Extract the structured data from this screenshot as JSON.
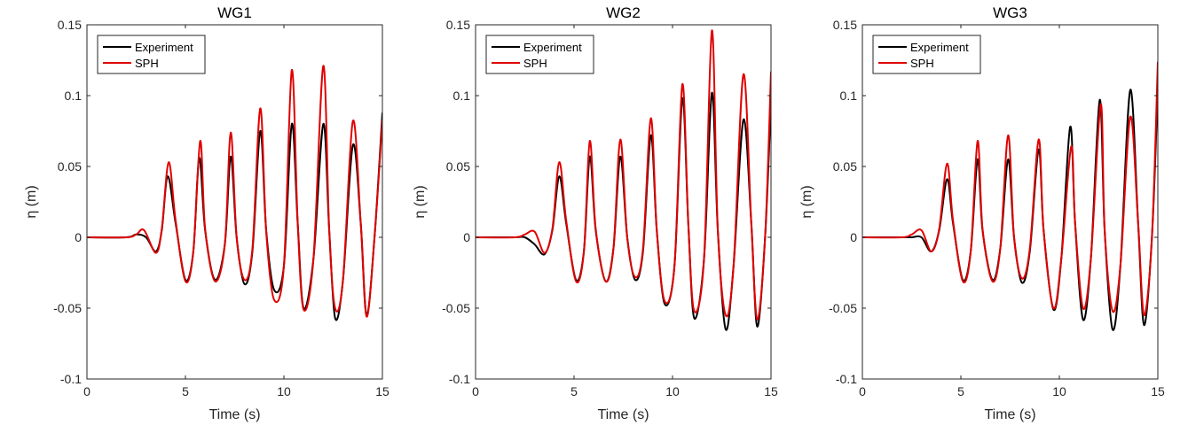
{
  "chart_data": [
    {
      "type": "line",
      "title": "WG1",
      "xlabel": "Time (s)",
      "ylabel": "η (m)",
      "xlim": [
        0,
        15
      ],
      "ylim": [
        -0.1,
        0.15
      ],
      "xticks": [
        "0",
        "5",
        "10",
        "15"
      ],
      "yticks": [
        "-0.1",
        "-0.05",
        "0",
        "0.05",
        "0.1",
        "0.15"
      ],
      "legend": "top-left",
      "grid": false,
      "series": [
        {
          "name": "Experiment",
          "color": "#000000",
          "x": [
            0,
            2.0,
            2.5,
            3.0,
            3.5,
            3.8,
            4.1,
            4.5,
            5.0,
            5.4,
            5.7,
            6.0,
            6.5,
            7.0,
            7.3,
            7.6,
            8.0,
            8.4,
            8.8,
            9.1,
            9.5,
            10.0,
            10.4,
            10.7,
            11.0,
            11.5,
            12.0,
            12.3,
            12.6,
            13.0,
            13.5,
            13.9,
            14.2,
            14.6,
            15.0
          ],
          "values": [
            0,
            0,
            0.002,
            0.0,
            -0.01,
            0.005,
            0.043,
            0.01,
            -0.03,
            -0.01,
            0.056,
            0.005,
            -0.03,
            -0.005,
            0.057,
            0.0,
            -0.033,
            -0.01,
            0.075,
            0.005,
            -0.037,
            -0.02,
            0.08,
            0.01,
            -0.05,
            -0.015,
            0.08,
            0.005,
            -0.057,
            -0.03,
            0.065,
            0.01,
            -0.055,
            0.0,
            0.088
          ]
        },
        {
          "name": "SPH",
          "color": "#e00000",
          "x": [
            0,
            2.0,
            2.5,
            2.9,
            3.5,
            3.8,
            4.15,
            4.5,
            5.0,
            5.4,
            5.75,
            6.0,
            6.5,
            7.0,
            7.3,
            7.6,
            8.0,
            8.4,
            8.8,
            9.1,
            9.5,
            10.0,
            10.4,
            10.7,
            11.0,
            11.5,
            12.0,
            12.3,
            12.6,
            13.0,
            13.5,
            13.9,
            14.2,
            14.6,
            15.0
          ],
          "values": [
            0,
            0,
            0.002,
            0.005,
            -0.011,
            0.006,
            0.053,
            0.012,
            -0.031,
            -0.01,
            0.068,
            0.006,
            -0.031,
            -0.005,
            0.074,
            0.0,
            -0.03,
            -0.008,
            0.091,
            0.004,
            -0.044,
            -0.02,
            0.118,
            0.01,
            -0.051,
            -0.015,
            0.121,
            0.005,
            -0.05,
            -0.03,
            0.082,
            0.01,
            -0.056,
            0.0,
            0.083
          ]
        }
      ]
    },
    {
      "type": "line",
      "title": "WG2",
      "xlabel": "Time (s)",
      "ylabel": "η (m)",
      "xlim": [
        0,
        15
      ],
      "ylim": [
        -0.1,
        0.15
      ],
      "xticks": [
        "0",
        "5",
        "10",
        "15"
      ],
      "yticks": [
        "-0.1",
        "-0.05",
        "0",
        "0.05",
        "0.1",
        "0.15"
      ],
      "legend": "top-left",
      "grid": false,
      "series": [
        {
          "name": "Experiment",
          "color": "#000000",
          "x": [
            0,
            2.0,
            2.5,
            3.0,
            3.5,
            3.9,
            4.25,
            4.6,
            5.1,
            5.5,
            5.8,
            6.1,
            6.6,
            7.0,
            7.35,
            7.7,
            8.1,
            8.5,
            8.9,
            9.2,
            9.6,
            10.1,
            10.5,
            10.8,
            11.1,
            11.6,
            12.0,
            12.3,
            12.7,
            13.1,
            13.6,
            14.0,
            14.3,
            14.7,
            15.0
          ],
          "values": [
            0,
            0,
            0.0,
            -0.005,
            -0.012,
            0.005,
            0.043,
            0.01,
            -0.03,
            -0.01,
            0.057,
            0.005,
            -0.031,
            -0.008,
            0.057,
            0.0,
            -0.03,
            -0.01,
            0.072,
            0.005,
            -0.047,
            -0.02,
            0.098,
            0.01,
            -0.057,
            -0.015,
            0.102,
            0.005,
            -0.065,
            -0.02,
            0.083,
            0.01,
            -0.063,
            0.0,
            0.097
          ]
        },
        {
          "name": "SPH",
          "color": "#e00000",
          "x": [
            0,
            2.0,
            2.5,
            3.0,
            3.5,
            3.9,
            4.25,
            4.6,
            5.1,
            5.5,
            5.8,
            6.1,
            6.6,
            7.0,
            7.35,
            7.7,
            8.1,
            8.5,
            8.9,
            9.2,
            9.6,
            10.1,
            10.5,
            10.8,
            11.1,
            11.6,
            12.0,
            12.3,
            12.7,
            13.1,
            13.6,
            14.0,
            14.3,
            14.7,
            15.0
          ],
          "values": [
            0,
            0,
            0.002,
            0.004,
            -0.011,
            0.006,
            0.053,
            0.012,
            -0.031,
            -0.01,
            0.068,
            0.006,
            -0.031,
            -0.008,
            0.069,
            0.0,
            -0.028,
            -0.008,
            0.084,
            0.005,
            -0.045,
            -0.02,
            0.108,
            0.01,
            -0.052,
            -0.015,
            0.146,
            0.005,
            -0.055,
            -0.02,
            0.115,
            0.01,
            -0.058,
            0.0,
            0.117
          ]
        }
      ]
    },
    {
      "type": "line",
      "title": "WG3",
      "xlabel": "Time (s)",
      "ylabel": "η (m)",
      "xlim": [
        0,
        15
      ],
      "ylim": [
        -0.1,
        0.15
      ],
      "xticks": [
        "0",
        "5",
        "10",
        "15"
      ],
      "yticks": [
        "-0.1",
        "-0.05",
        "0",
        "0.05",
        "0.1",
        "0.15"
      ],
      "legend": "top-left",
      "grid": false,
      "series": [
        {
          "name": "Experiment",
          "color": "#000000",
          "x": [
            0,
            2.0,
            2.5,
            3.0,
            3.5,
            3.9,
            4.3,
            4.6,
            5.1,
            5.5,
            5.85,
            6.1,
            6.6,
            7.0,
            7.4,
            7.7,
            8.1,
            8.5,
            8.95,
            9.2,
            9.7,
            10.1,
            10.55,
            10.8,
            11.2,
            11.6,
            12.05,
            12.3,
            12.7,
            13.1,
            13.6,
            14.0,
            14.3,
            14.7,
            15.0
          ],
          "values": [
            0,
            0,
            0.0,
            0.0,
            -0.01,
            0.005,
            0.041,
            0.01,
            -0.03,
            -0.01,
            0.055,
            0.005,
            -0.03,
            -0.008,
            0.055,
            0.0,
            -0.032,
            -0.01,
            0.062,
            0.005,
            -0.051,
            -0.015,
            0.078,
            0.01,
            -0.058,
            -0.015,
            0.097,
            0.005,
            -0.065,
            -0.02,
            0.104,
            0.01,
            -0.062,
            0.0,
            0.106
          ]
        },
        {
          "name": "SPH",
          "color": "#e00000",
          "x": [
            0,
            2.0,
            2.5,
            3.0,
            3.5,
            3.9,
            4.3,
            4.6,
            5.1,
            5.5,
            5.85,
            6.1,
            6.6,
            7.0,
            7.4,
            7.7,
            8.1,
            8.5,
            8.95,
            9.2,
            9.7,
            10.1,
            10.6,
            10.8,
            11.2,
            11.6,
            12.1,
            12.3,
            12.7,
            13.1,
            13.6,
            14.0,
            14.3,
            14.7,
            15.0
          ],
          "values": [
            0,
            0,
            0.002,
            0.005,
            -0.01,
            0.006,
            0.052,
            0.012,
            -0.031,
            -0.01,
            0.068,
            0.006,
            -0.031,
            -0.008,
            0.072,
            0.0,
            -0.029,
            -0.008,
            0.069,
            0.005,
            -0.05,
            -0.015,
            0.064,
            0.01,
            -0.05,
            -0.015,
            0.094,
            0.005,
            -0.052,
            -0.02,
            0.085,
            0.01,
            -0.055,
            0.0,
            0.124
          ]
        }
      ]
    }
  ]
}
